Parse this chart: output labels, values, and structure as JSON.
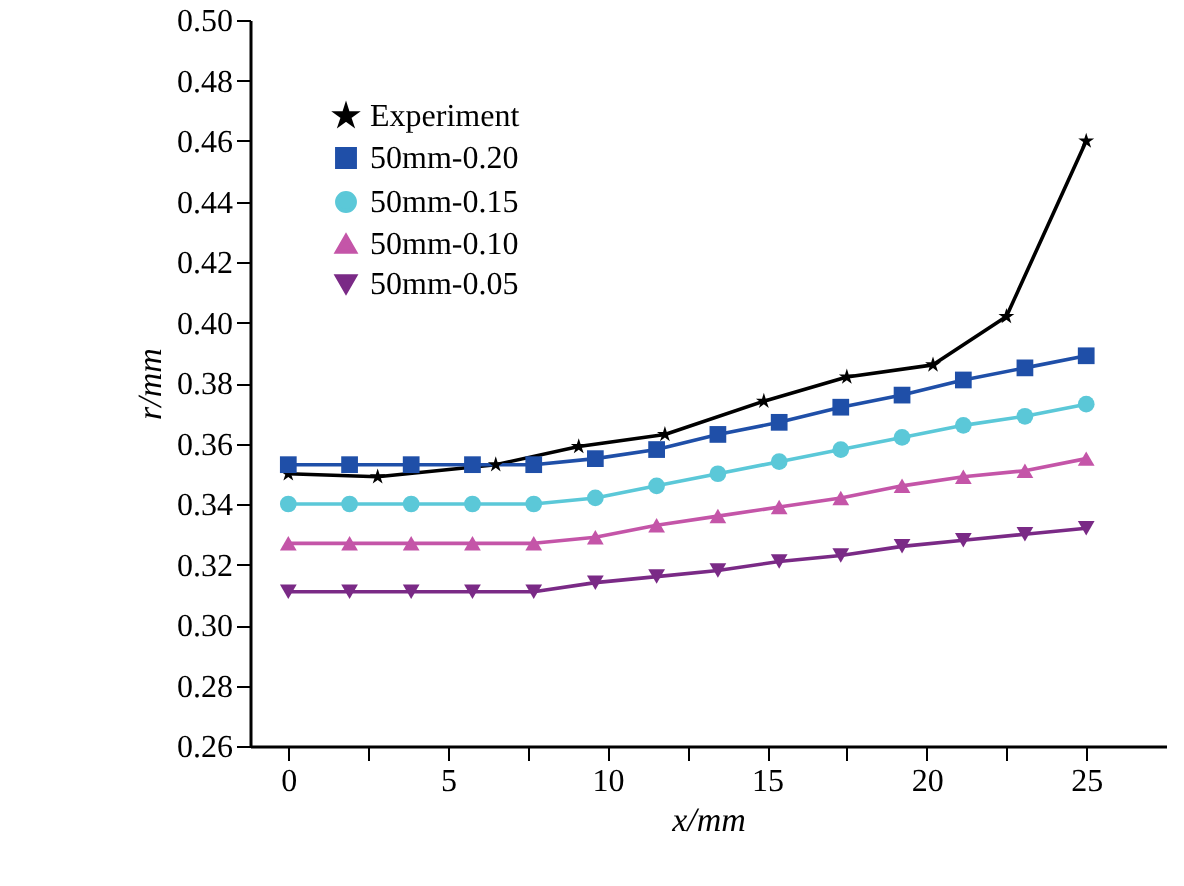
{
  "chart_data": {
    "type": "line",
    "xlabel": "x/mm",
    "ylabel": "r/mm",
    "xlim": [
      -1.2,
      27.5
    ],
    "xticks": [
      0,
      {
        "value": 2.5,
        "label": null
      },
      5,
      {
        "value": 7.5,
        "label": null
      },
      10,
      {
        "value": 12.5,
        "label": null
      },
      15,
      {
        "value": 17.5,
        "label": null
      },
      20,
      {
        "value": 22.5,
        "label": null
      },
      25
    ],
    "ylim": [
      0.26,
      0.5
    ],
    "yticks": [
      0.26,
      0.28,
      {
        "value": 0.3,
        "label": "0.30"
      },
      0.32,
      0.34,
      0.36,
      0.38,
      {
        "value": 0.4,
        "label": "0.40"
      },
      0.42,
      0.44,
      0.46,
      0.48,
      {
        "value": 0.5,
        "label": "0.50"
      }
    ],
    "legend": "top left",
    "grid": false,
    "line_style": "solid",
    "series": [
      {
        "name": "Experiment",
        "color": "#000000",
        "marker": "star",
        "x": [
          0,
          2.8,
          6.5,
          9.1,
          11.8,
          14.9,
          17.5,
          20.2,
          22.5,
          25
        ],
        "values": [
          0.35,
          0.349,
          0.353,
          0.359,
          0.363,
          0.374,
          0.382,
          0.386,
          0.402,
          0.46
        ]
      },
      {
        "name": "50mm-0.20",
        "color": "#1f4fa8",
        "marker": "square",
        "x": [
          0,
          1.92,
          3.85,
          5.77,
          7.69,
          9.62,
          11.54,
          13.46,
          15.38,
          17.31,
          19.23,
          21.15,
          23.08,
          25
        ],
        "values": [
          0.353,
          0.353,
          0.353,
          0.353,
          0.353,
          0.355,
          0.358,
          0.363,
          0.367,
          0.372,
          0.376,
          0.381,
          0.385,
          0.389
        ]
      },
      {
        "name": "50mm-0.15",
        "color": "#5bc8d8",
        "marker": "circle",
        "x": [
          0,
          1.92,
          3.85,
          5.77,
          7.69,
          9.62,
          11.54,
          13.46,
          15.38,
          17.31,
          19.23,
          21.15,
          23.08,
          25
        ],
        "values": [
          0.34,
          0.34,
          0.34,
          0.34,
          0.34,
          0.342,
          0.346,
          0.35,
          0.354,
          0.358,
          0.362,
          0.366,
          0.369,
          0.373
        ]
      },
      {
        "name": "50mm-0.10",
        "color": "#c455a8",
        "marker": "triangle",
        "x": [
          0,
          1.92,
          3.85,
          5.77,
          7.69,
          9.62,
          11.54,
          13.46,
          15.38,
          17.31,
          19.23,
          21.15,
          23.08,
          25
        ],
        "values": [
          0.327,
          0.327,
          0.327,
          0.327,
          0.327,
          0.329,
          0.333,
          0.336,
          0.339,
          0.342,
          0.346,
          0.349,
          0.351,
          0.355
        ]
      },
      {
        "name": "50mm-0.05",
        "color": "#7a2a86",
        "marker": "triangle-down",
        "x": [
          0,
          1.92,
          3.85,
          5.77,
          7.69,
          9.62,
          11.54,
          13.46,
          15.38,
          17.31,
          19.23,
          21.15,
          23.08,
          25
        ],
        "values": [
          0.311,
          0.311,
          0.311,
          0.311,
          0.311,
          0.314,
          0.316,
          0.318,
          0.321,
          0.323,
          0.326,
          0.328,
          0.33,
          0.332
        ]
      }
    ]
  }
}
